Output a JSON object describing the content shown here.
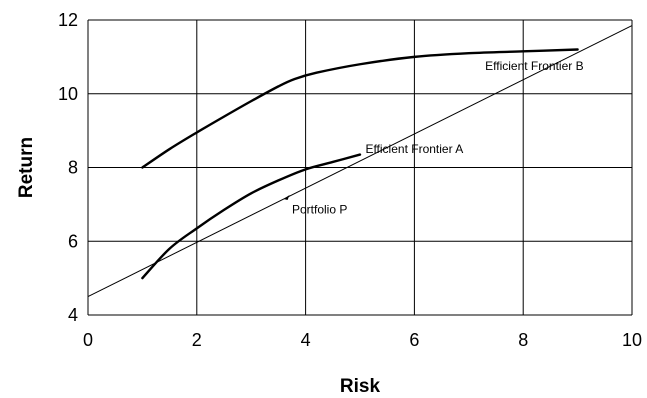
{
  "chart_data": {
    "type": "line",
    "title": "",
    "xlabel": "Risk",
    "ylabel": "Return",
    "xlim": [
      0,
      10
    ],
    "ylim": [
      4,
      12
    ],
    "xticks": [
      0,
      2,
      4,
      6,
      8,
      10
    ],
    "yticks": [
      4,
      6,
      8,
      10,
      12
    ],
    "xtick_labels": [
      "0",
      "2",
      "4",
      "6",
      "8",
      "10"
    ],
    "ytick_labels": [
      "4",
      "6",
      "8",
      "10",
      "12"
    ],
    "grid": true,
    "legend": "none",
    "series": [
      {
        "name": "Efficient Frontier A",
        "x": [
          1.0,
          1.5,
          2.0,
          2.5,
          3.0,
          3.5,
          4.0,
          4.5,
          5.0
        ],
        "y": [
          5.0,
          5.8,
          6.35,
          6.85,
          7.3,
          7.65,
          7.95,
          8.15,
          8.35
        ]
      },
      {
        "name": "Efficient Frontier B",
        "x": [
          1.0,
          1.5,
          2.0,
          2.5,
          3.0,
          3.5,
          3.8,
          4.2,
          5.0,
          6.0,
          7.0,
          8.0,
          9.0
        ],
        "y": [
          8.0,
          8.5,
          8.95,
          9.38,
          9.8,
          10.2,
          10.4,
          10.57,
          10.8,
          11.0,
          11.1,
          11.15,
          11.2
        ]
      },
      {
        "name": "",
        "x": [
          0,
          10
        ],
        "y": [
          4.5,
          11.85
        ]
      }
    ],
    "annotations": [
      {
        "text": "Efficient Frontier B",
        "x": 7.3,
        "y": 10.65
      },
      {
        "text": "Efficient Frontier A",
        "x": 5.1,
        "y": 8.4
      },
      {
        "text": "Portfolio P",
        "x": 3.75,
        "y": 6.75,
        "point_x": 3.65,
        "point_y": 7.2
      }
    ]
  }
}
